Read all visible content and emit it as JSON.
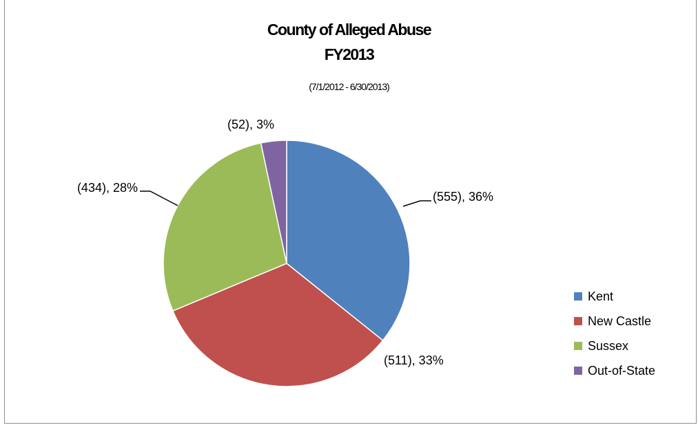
{
  "chart_data": {
    "type": "pie",
    "title": "County of Alleged Abuse",
    "title_line2": "FY2013",
    "subtitle": "(7/1/2012 - 6/30/2013)",
    "legend_position": "right",
    "slices": [
      {
        "name": "Kent",
        "value": 555,
        "percent": 36,
        "label": "(555), 36%",
        "color": "#4f81bd"
      },
      {
        "name": "New Castle",
        "value": 511,
        "percent": 33,
        "label": "(511), 33%",
        "color": "#c0504d"
      },
      {
        "name": "Sussex",
        "value": 434,
        "percent": 28,
        "label": "(434), 28%",
        "color": "#9bbb59"
      },
      {
        "name": "Out-of-State",
        "value": 52,
        "percent": 3,
        "label": "(52), 3%",
        "color": "#8064a2"
      }
    ]
  }
}
